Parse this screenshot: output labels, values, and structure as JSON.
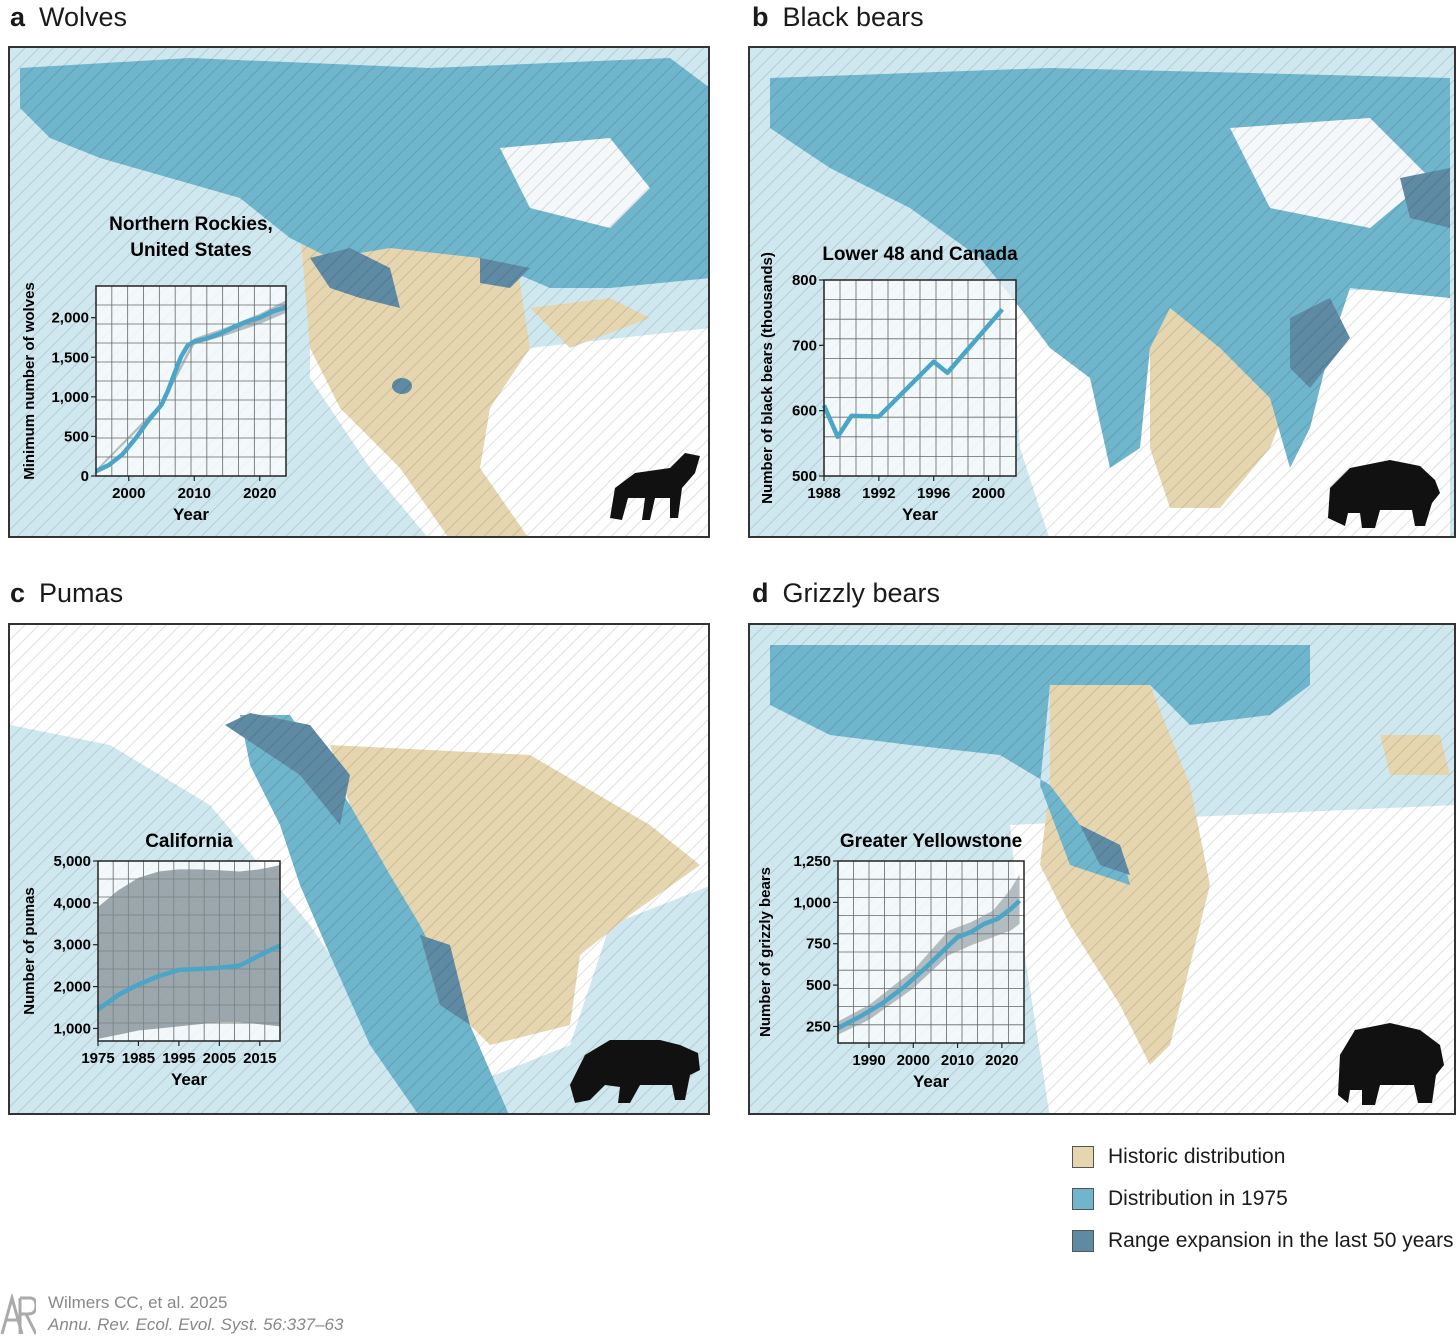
{
  "panels": [
    {
      "letter": "a",
      "name": "Wolves"
    },
    {
      "letter": "b",
      "name": "Black bears"
    },
    {
      "letter": "c",
      "name": "Pumas"
    },
    {
      "letter": "d",
      "name": "Grizzly bears"
    }
  ],
  "colors": {
    "historic": "#e6d6b0",
    "distribution_1975": "#6fb5cc",
    "range_expansion": "#5f8aa3",
    "line": "#4aa5c6",
    "ocean": "#cfe8ef"
  },
  "legend": [
    {
      "label": "Historic distribution",
      "color": "#e6d6b0"
    },
    {
      "label": "Distribution in 1975",
      "color": "#6fb5cc"
    },
    {
      "label": "Range expansion in the last 50 years",
      "color": "#5f8aa3"
    }
  ],
  "credit": {
    "line1": "Wilmers CC, et al. 2025",
    "line2": "Annu. Rev. Ecol. Evol. Syst. 56:337–63"
  },
  "chart_data": [
    {
      "type": "line",
      "title": "Northern Rockies,\nUnited States",
      "xlabel": "Year",
      "ylabel": "Minimum number of wolves",
      "xlim": [
        1995,
        2024
      ],
      "ylim": [
        0,
        2400
      ],
      "xticks": [
        2000,
        2010,
        2020
      ],
      "xtick_labels": [
        "2000",
        "2010",
        "2020"
      ],
      "yticks": [
        0,
        500,
        1000,
        1500,
        2000
      ],
      "ytick_labels": [
        "0",
        "500",
        "1,000",
        "1,500",
        "2,000"
      ],
      "series": [
        {
          "x": [
            1995,
            1997,
            1999,
            2001,
            2003,
            2005,
            2006,
            2007,
            2008,
            2009,
            2010,
            2012,
            2014,
            2016,
            2018,
            2020,
            2022,
            2024
          ],
          "y": [
            60,
            140,
            270,
            470,
            700,
            900,
            1080,
            1300,
            1510,
            1650,
            1700,
            1740,
            1800,
            1880,
            1950,
            2000,
            2080,
            2130
          ]
        }
      ],
      "band": {
        "x": [
          1995,
          2005,
          2010,
          2015,
          2020,
          2024
        ],
        "lower": [
          50,
          880,
          1660,
          1780,
          1920,
          2060
        ],
        "upper": [
          80,
          930,
          1740,
          1880,
          2050,
          2220
        ]
      }
    },
    {
      "type": "line",
      "title": "Lower 48 and Canada",
      "xlabel": "Year",
      "ylabel": "Number of black bears (thousands)",
      "xlim": [
        1988,
        2002
      ],
      "ylim": [
        500,
        800
      ],
      "xticks": [
        1988,
        1992,
        1996,
        2000
      ],
      "xtick_labels": [
        "1988",
        "1992",
        "1996",
        "2000"
      ],
      "yticks": [
        500,
        600,
        700,
        800
      ],
      "ytick_labels": [
        "500",
        "600",
        "700",
        "800"
      ],
      "series": [
        {
          "x": [
            1988,
            1989,
            1990,
            1992,
            1996,
            1997,
            2001
          ],
          "y": [
            608,
            560,
            592,
            591,
            675,
            658,
            755
          ]
        }
      ]
    },
    {
      "type": "line",
      "title": "California",
      "xlabel": "Year",
      "ylabel": "Number of pumas",
      "xlim": [
        1975,
        2020
      ],
      "ylim": [
        700,
        5000
      ],
      "xticks": [
        1975,
        1985,
        1995,
        2005,
        2015
      ],
      "xtick_labels": [
        "1975",
        "1985",
        "1995",
        "2005",
        "2015"
      ],
      "yticks": [
        1000,
        2000,
        3000,
        4000,
        5000
      ],
      "ytick_labels": [
        "1,000",
        "2,000",
        "3,000",
        "4,000",
        "5,000"
      ],
      "series": [
        {
          "x": [
            1975,
            1980,
            1985,
            1990,
            1995,
            2000,
            2005,
            2010,
            2015,
            2020
          ],
          "y": [
            1450,
            1800,
            2050,
            2250,
            2400,
            2420,
            2450,
            2500,
            2750,
            2980
          ]
        }
      ],
      "band": {
        "x": [
          1975,
          1980,
          1985,
          1990,
          1995,
          2000,
          2005,
          2010,
          2015,
          2020
        ],
        "lower": [
          750,
          850,
          950,
          1000,
          1050,
          1100,
          1150,
          1150,
          1100,
          1050
        ],
        "upper": [
          3900,
          4300,
          4600,
          4750,
          4800,
          4800,
          4780,
          4750,
          4800,
          4900
        ]
      }
    },
    {
      "type": "line",
      "title": "Greater Yellowstone",
      "xlabel": "Year",
      "ylabel": "Number of grizzly bears",
      "xlim": [
        1983,
        2025
      ],
      "ylim": [
        150,
        1250
      ],
      "xticks": [
        1990,
        2000,
        2010,
        2020
      ],
      "xtick_labels": [
        "1990",
        "2000",
        "2010",
        "2020"
      ],
      "yticks": [
        250,
        500,
        750,
        1000,
        1250
      ],
      "ytick_labels": [
        "250",
        "500",
        "750",
        "1,000",
        "1,250"
      ],
      "series": [
        {
          "x": [
            1983,
            1988,
            1993,
            1998,
            2003,
            2008,
            2010,
            2013,
            2016,
            2019,
            2022,
            2024
          ],
          "y": [
            240,
            310,
            390,
            490,
            610,
            740,
            790,
            820,
            870,
            900,
            960,
            1010
          ]
        }
      ],
      "band": {
        "x": [
          1983,
          1990,
          2000,
          2008,
          2013,
          2018,
          2022,
          2024
        ],
        "lower": [
          200,
          290,
          480,
          680,
          740,
          790,
          830,
          870
        ],
        "upper": [
          280,
          380,
          590,
          830,
          880,
          950,
          1080,
          1170
        ]
      }
    }
  ]
}
